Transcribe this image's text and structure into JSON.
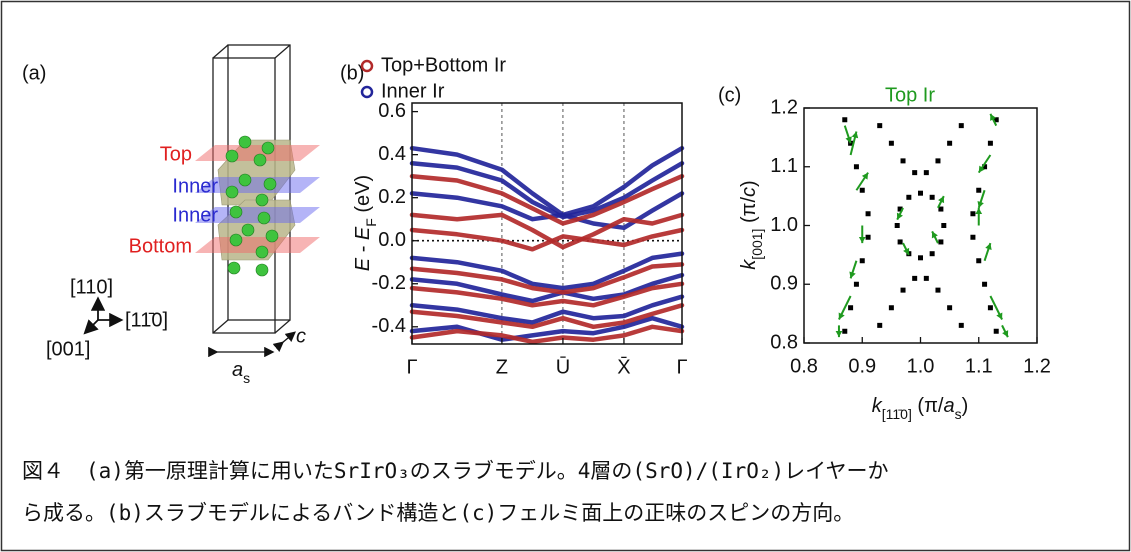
{
  "panel_a": {
    "label": "(a)",
    "layers": [
      "Top",
      "Inner",
      "Inner",
      "Bottom"
    ],
    "axes": [
      "[110]",
      "[11̄0]",
      "[001]"
    ],
    "lattice": {
      "a": "a",
      "a_sub": "s",
      "c": "c"
    }
  },
  "chart_data": [
    {
      "type": "line",
      "label": "(b)",
      "ylabel": [
        "E",
        " - ",
        "E",
        "F",
        " (eV)"
      ],
      "x": [
        0,
        0.167,
        0.333,
        0.446,
        0.559,
        0.672,
        0.785,
        0.89,
        1.0
      ],
      "xlim": [
        0,
        1
      ],
      "xticks": [
        {
          "value": 0,
          "label": "Γ"
        },
        {
          "value": 0.333,
          "label": "Z"
        },
        {
          "value": 0.559,
          "label": "Ū"
        },
        {
          "value": 0.785,
          "label": "X̄"
        },
        {
          "value": 1.0,
          "label": "Γ"
        }
      ],
      "ylim": [
        -0.48,
        0.64
      ],
      "yticks": [
        0.6,
        0.4,
        0.2,
        {
          "value": 0,
          "label": "0.0"
        },
        -0.2,
        -0.4
      ],
      "zero_line": true,
      "kpoint_lines": true,
      "series": [
        {
          "name": "Top+Bottom Ir",
          "color": "#b22a2a",
          "bands": [
            [
              0.3,
              0.28,
              0.22,
              0.15,
              0.08,
              0.12,
              0.18,
              0.24,
              0.3
            ],
            [
              0.12,
              0.1,
              0.12,
              0.05,
              -0.03,
              0.03,
              0.1,
              0.08,
              0.12
            ],
            [
              0.05,
              0.03,
              0.0,
              -0.04,
              0.02,
              0.0,
              -0.02,
              0.02,
              0.05
            ],
            [
              -0.13,
              -0.15,
              -0.18,
              -0.22,
              -0.24,
              -0.22,
              -0.17,
              -0.12,
              -0.11
            ],
            [
              -0.22,
              -0.24,
              -0.27,
              -0.3,
              -0.28,
              -0.3,
              -0.26,
              -0.22,
              -0.2
            ],
            [
              -0.33,
              -0.35,
              -0.38,
              -0.4,
              -0.36,
              -0.4,
              -0.38,
              -0.34,
              -0.3
            ],
            [
              -0.45,
              -0.42,
              -0.44,
              -0.47,
              -0.45,
              -0.46,
              -0.44,
              -0.4,
              -0.42
            ]
          ]
        },
        {
          "name": "Inner Ir",
          "color": "#22259a",
          "bands": [
            [
              0.43,
              0.4,
              0.33,
              0.22,
              0.12,
              0.16,
              0.25,
              0.35,
              0.43
            ],
            [
              0.36,
              0.34,
              0.28,
              0.18,
              0.11,
              0.14,
              0.2,
              0.28,
              0.36
            ],
            [
              0.22,
              0.2,
              0.16,
              0.1,
              0.12,
              0.08,
              0.06,
              0.14,
              0.22
            ],
            [
              -0.08,
              -0.1,
              -0.14,
              -0.2,
              -0.22,
              -0.2,
              -0.14,
              -0.08,
              -0.06
            ],
            [
              -0.18,
              -0.2,
              -0.25,
              -0.28,
              -0.24,
              -0.27,
              -0.25,
              -0.2,
              -0.16
            ],
            [
              -0.3,
              -0.32,
              -0.36,
              -0.38,
              -0.33,
              -0.36,
              -0.35,
              -0.3,
              -0.26
            ],
            [
              -0.42,
              -0.4,
              -0.46,
              -0.44,
              -0.42,
              -0.43,
              -0.4,
              -0.36,
              -0.4
            ]
          ]
        }
      ]
    },
    {
      "type": "scatter",
      "label": "(c)",
      "xlabel": [
        "k",
        "[11̄0]",
        " (π/",
        "a",
        "s",
        ")"
      ],
      "ylabel": [
        "k",
        "[001]",
        " (π/",
        "c",
        ")"
      ],
      "xlim": [
        0.8,
        1.2
      ],
      "ylim": [
        0.8,
        1.2
      ],
      "xticks": [
        0.8,
        0.9,
        {
          "value": 1,
          "label": "1.0"
        },
        1.1,
        1.2
      ],
      "yticks": [
        0.8,
        0.9,
        {
          "value": 1,
          "label": "1.0"
        },
        1.1,
        1.2
      ],
      "series": [
        {
          "marker": "square",
          "color": "#000000",
          "x": [
            0.87,
            0.88,
            0.89,
            0.9,
            0.91,
            0.91,
            0.9,
            0.89,
            0.88,
            0.87,
            1.13,
            1.12,
            1.11,
            1.1,
            1.09,
            1.09,
            1.1,
            1.11,
            1.12,
            1.13,
            0.93,
            0.95,
            0.97,
            0.99,
            1.07,
            1.05,
            1.03,
            1.01,
            0.93,
            0.95,
            0.97,
            0.99,
            1.07,
            1.05,
            1.03,
            1.01,
            1.04,
            1.035,
            1.02,
            1.0,
            0.98,
            0.965,
            0.96,
            0.965,
            0.98,
            1.0,
            1.02,
            1.035
          ],
          "y": [
            1.18,
            1.14,
            1.1,
            1.06,
            1.02,
            0.98,
            0.94,
            0.9,
            0.86,
            0.82,
            1.18,
            1.14,
            1.1,
            1.06,
            1.02,
            0.98,
            0.94,
            0.9,
            0.86,
            0.82,
            1.17,
            1.14,
            1.11,
            1.09,
            1.17,
            1.14,
            1.11,
            1.09,
            0.83,
            0.86,
            0.89,
            0.91,
            0.83,
            0.86,
            0.89,
            0.91,
            1.0,
            1.028,
            1.048,
            1.055,
            1.048,
            1.028,
            1.0,
            0.972,
            0.952,
            0.945,
            0.952,
            0.972
          ]
        },
        {
          "name": "Top Ir",
          "marker": "arrow",
          "color": "#1f9a1f",
          "x": [
            0.87,
            0.88,
            0.89,
            0.9,
            0.89,
            0.88,
            0.86,
            1.13,
            1.12,
            1.11,
            1.1,
            1.11,
            1.12,
            1.14,
            0.97,
            0.97,
            1.03,
            1.03
          ],
          "y": [
            1.17,
            1.12,
            1.06,
            1.0,
            0.94,
            0.88,
            0.83,
            1.17,
            1.12,
            1.06,
            1.0,
            0.94,
            0.88,
            0.83,
            1.03,
            0.97,
            1.03,
            0.97
          ],
          "u": [
            0.01,
            0.01,
            0.02,
            0.0,
            -0.01,
            -0.02,
            0.0,
            -0.01,
            -0.02,
            -0.01,
            0.0,
            0.01,
            0.02,
            0.01,
            -0.01,
            0.01,
            0.01,
            -0.01
          ],
          "v": [
            -0.03,
            0.04,
            0.03,
            -0.03,
            -0.03,
            -0.04,
            -0.02,
            0.02,
            -0.03,
            -0.03,
            0.03,
            0.03,
            -0.04,
            -0.02,
            -0.02,
            -0.02,
            0.02,
            0.02
          ]
        }
      ]
    }
  ],
  "caption": {
    "label": "図４",
    "lines": [
      "(a)第一原理計算に用いたSrIrO₃のスラブモデル。4層の(SrO)/(IrO₂)レイヤーか",
      "ら成る。(b)スラブモデルによるバンド構造と(c)フェルミ面上の正味のスピンの方向。"
    ]
  }
}
